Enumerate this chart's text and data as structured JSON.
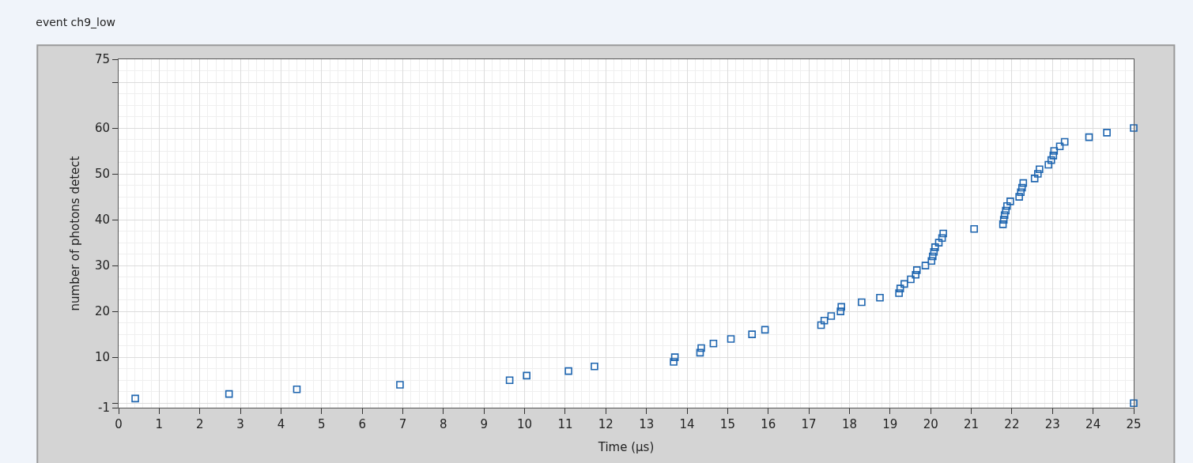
{
  "chart_data": {
    "type": "scatter",
    "title": "event ch9_low",
    "xlabel": "Time (µs)",
    "ylabel": "number of photons detect",
    "x": [
      0.41,
      2.72,
      4.39,
      6.93,
      9.63,
      10.05,
      11.08,
      11.72,
      13.67,
      13.7,
      14.32,
      14.35,
      14.65,
      15.08,
      15.6,
      15.92,
      17.3,
      17.38,
      17.55,
      17.78,
      17.8,
      18.3,
      18.75,
      19.22,
      19.25,
      19.35,
      19.51,
      19.63,
      19.66,
      19.87,
      20.02,
      20.05,
      20.08,
      20.11,
      20.2,
      20.28,
      20.31,
      21.07,
      21.78,
      21.8,
      21.82,
      21.85,
      21.88,
      21.96,
      22.18,
      22.22,
      22.25,
      22.28,
      22.56,
      22.64,
      22.68,
      22.9,
      22.97,
      23.02,
      23.04,
      23.18,
      23.3,
      23.9,
      24.34,
      25,
      25
    ],
    "series": [
      {
        "color": "#1f66b0",
        "values": [
          1,
          2,
          3,
          4,
          5,
          6,
          7,
          8,
          9,
          10,
          11,
          12,
          13,
          14,
          15,
          16,
          17,
          18,
          19,
          20,
          21,
          22,
          23,
          24,
          25,
          26,
          27,
          28,
          29,
          30,
          31,
          32,
          33,
          34,
          35,
          36,
          37,
          38,
          39,
          40,
          41,
          42,
          43,
          44,
          45,
          46,
          47,
          48,
          49,
          50,
          51,
          52,
          53,
          54,
          55,
          56,
          57,
          58,
          59,
          60,
          0
        ]
      }
    ],
    "xlim": [
      0,
      25
    ],
    "xticks": [
      0,
      1,
      2,
      3,
      4,
      5,
      6,
      7,
      8,
      9,
      10,
      11,
      12,
      13,
      14,
      15,
      16,
      17,
      18,
      19,
      20,
      21,
      22,
      23,
      24,
      25
    ],
    "ylim": [
      -1,
      75
    ],
    "yticks": [
      -1,
      {
        "value": 0,
        "label": null
      },
      10,
      20,
      30,
      40,
      50,
      60,
      {
        "value": 70,
        "label": null
      },
      75
    ],
    "grid": true,
    "marker": "square"
  }
}
